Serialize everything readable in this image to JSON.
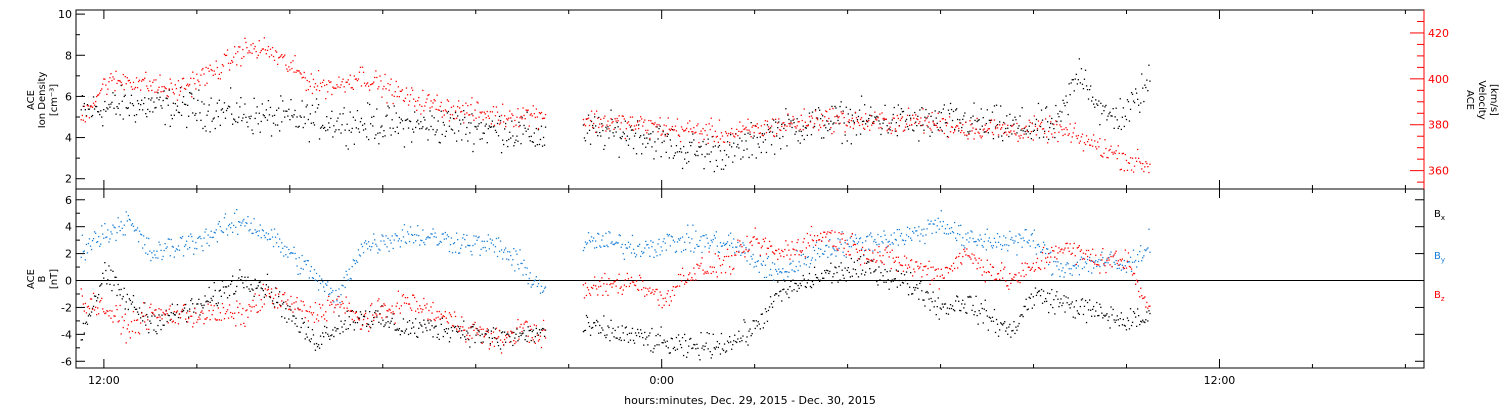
{
  "chart_data": [
    {
      "panel": "top",
      "type": "scatter",
      "xlabel": "hours:minutes, Dec. 29, 2015 - Dec. 30, 2015",
      "ylabel_left": [
        "ACE",
        "Ion Density",
        "[cm⁻³]"
      ],
      "ylabel_right": [
        "ACE",
        "Velocity",
        "[km/s]"
      ],
      "x_ticks": [
        "12:00",
        "0:00",
        "12:00"
      ],
      "x_tick_hours": [
        12,
        24,
        36
      ],
      "x_range_hours": [
        11.4,
        40.4
      ],
      "data_gap_hours": [
        21.5,
        22.3
      ],
      "data_end_hour": 34.6,
      "ylim_left": [
        1.5,
        10.2
      ],
      "yticks_left": [
        2,
        4,
        6,
        8,
        10
      ],
      "ylim_right": [
        352,
        430
      ],
      "yticks_right": [
        360,
        380,
        400,
        420
      ],
      "colors": {
        "density": "#000000",
        "velocity": "#ff0000",
        "right_axis": "#ff0000"
      },
      "series": [
        {
          "name": "",
          "axis": "left",
          "color": "#000000",
          "x": [
            11.5,
            12.5,
            13.5,
            14.5,
            15.5,
            16.5,
            17.5,
            18.5,
            19.5,
            20.5,
            21.4,
            22.5,
            23.5,
            24.5,
            25.5,
            26.5,
            27.5,
            28.5,
            29.5,
            30.5,
            31.5,
            32.5,
            33.0,
            33.5,
            34.0,
            34.5
          ],
          "y": [
            5.3,
            5.6,
            5.5,
            5.3,
            5.0,
            4.9,
            4.7,
            4.6,
            4.6,
            4.4,
            4.1,
            4.3,
            4.2,
            3.4,
            3.3,
            4.4,
            4.8,
            4.9,
            4.7,
            4.8,
            4.5,
            4.6,
            7.4,
            5.0,
            5.2,
            6.8
          ]
        },
        {
          "name": "",
          "axis": "right",
          "color": "#ff0000",
          "x": [
            11.5,
            12.0,
            12.5,
            13.5,
            14.5,
            15.0,
            15.5,
            16.5,
            17.0,
            17.5,
            18.5,
            19.5,
            20.5,
            21.4,
            22.5,
            23.5,
            24.5,
            25.5,
            26.5,
            27.5,
            28.5,
            29.5,
            30.5,
            31.5,
            32.5,
            33.5,
            34.0,
            34.5
          ],
          "y": [
            383,
            398,
            400,
            395,
            405,
            413,
            413,
            398,
            397,
            402,
            392,
            387,
            384,
            385,
            382,
            380,
            378,
            376,
            380,
            383,
            381,
            382,
            379,
            378,
            378,
            370,
            365,
            362
          ]
        }
      ]
    },
    {
      "panel": "bottom",
      "type": "scatter",
      "ylabel_left": [
        "ACE",
        "B",
        "[nT]"
      ],
      "ylim": [
        -6.5,
        6.8
      ],
      "yticks": [
        -6,
        -4,
        -2,
        0,
        2,
        4,
        6
      ],
      "zero_line": true,
      "legend_position": "right",
      "legend": [
        {
          "name": "B",
          "sub": "x",
          "color": "#000000"
        },
        {
          "name": "B",
          "sub": "y",
          "color": "#1a7fd6"
        },
        {
          "name": "B",
          "sub": "z",
          "color": "#ff0000"
        }
      ],
      "series": [
        {
          "name": "Bx",
          "color": "#000000",
          "x": [
            11.5,
            12.0,
            12.5,
            13.0,
            14.0,
            15.0,
            15.5,
            16.5,
            17.0,
            17.5,
            18.5,
            19.5,
            20.5,
            21.4,
            22.5,
            23.5,
            24.5,
            25.5,
            26.0,
            26.5,
            27.5,
            28.5,
            29.5,
            30.0,
            30.5,
            31.5,
            32.0,
            32.5,
            33.5,
            34.0,
            34.5
          ],
          "y": [
            -4.0,
            0.5,
            -1.5,
            -3.0,
            -2.0,
            0.3,
            -0.5,
            -4.5,
            -3.3,
            -2.5,
            -3.5,
            -3.5,
            -4.3,
            -3.8,
            -3.5,
            -4.2,
            -5.0,
            -4.5,
            -3.5,
            -1.0,
            0.5,
            1.0,
            -0.5,
            -2.0,
            -1.5,
            -3.8,
            -1.0,
            -1.5,
            -2.5,
            -3.0,
            -2.8
          ]
        },
        {
          "name": "By",
          "color": "#1a7fd6",
          "x": [
            11.5,
            12.0,
            12.5,
            13.0,
            14.0,
            15.0,
            15.5,
            16.5,
            17.0,
            17.5,
            18.5,
            19.5,
            20.5,
            21.0,
            21.4,
            22.5,
            23.5,
            24.5,
            25.5,
            26.0,
            26.5,
            27.5,
            28.5,
            29.5,
            30.0,
            30.5,
            31.5,
            32.0,
            32.5,
            33.5,
            34.0,
            34.5
          ],
          "y": [
            2.5,
            3.5,
            4.5,
            2.0,
            3.0,
            4.5,
            3.5,
            0.5,
            -1.5,
            2.5,
            3.5,
            3.0,
            2.5,
            1.0,
            -0.5,
            3.0,
            2.5,
            3.0,
            2.8,
            1.5,
            0.5,
            2.5,
            3.0,
            3.5,
            4.5,
            3.0,
            3.0,
            3.0,
            1.0,
            1.5,
            1.0,
            3.0
          ]
        },
        {
          "name": "Bz",
          "color": "#ff0000",
          "x": [
            11.5,
            12.0,
            12.5,
            13.0,
            14.0,
            15.0,
            15.5,
            16.5,
            17.0,
            17.5,
            18.5,
            19.5,
            20.5,
            21.0,
            21.4,
            22.5,
            23.5,
            24.0,
            24.5,
            25.5,
            26.0,
            26.5,
            27.5,
            28.5,
            29.5,
            30.0,
            30.5,
            31.5,
            32.0,
            32.5,
            33.5,
            34.0,
            34.5
          ],
          "y": [
            -1.5,
            -2.0,
            -3.5,
            -2.5,
            -2.5,
            -2.5,
            -1.0,
            -2.5,
            -1.5,
            -3.0,
            -1.5,
            -3.0,
            -4.5,
            -3.5,
            -4.0,
            -0.5,
            0.0,
            -1.5,
            0.5,
            1.5,
            3.0,
            2.0,
            3.5,
            2.0,
            1.0,
            0.5,
            2.0,
            0.0,
            1.0,
            2.5,
            1.5,
            1.5,
            -2.0
          ]
        }
      ]
    }
  ]
}
